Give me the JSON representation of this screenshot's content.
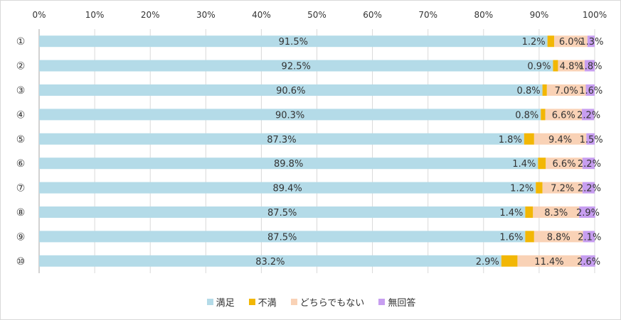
{
  "chart_data": {
    "type": "bar",
    "orientation": "horizontal",
    "stacked": "percent",
    "categories": [
      "①",
      "②",
      "③",
      "④",
      "⑤",
      "⑥",
      "⑦",
      "⑧",
      "⑨",
      "⑩"
    ],
    "x_ticks": [
      "0%",
      "10%",
      "20%",
      "30%",
      "40%",
      "50%",
      "60%",
      "70%",
      "80%",
      "90%",
      "100%"
    ],
    "xlim": [
      0,
      100
    ],
    "grid": true,
    "legend_position": "bottom",
    "series": [
      {
        "name": "満足",
        "color": "#b4dbe8",
        "values": [
          91.5,
          92.5,
          90.6,
          90.3,
          87.3,
          89.8,
          89.4,
          87.5,
          87.5,
          83.2
        ],
        "labels": [
          "91.5%",
          "92.5%",
          "90.6%",
          "90.3%",
          "87.3%",
          "89.8%",
          "89.4%",
          "87.5%",
          "87.5%",
          "83.2%"
        ]
      },
      {
        "name": "不満",
        "color": "#f2b705",
        "values": [
          1.2,
          0.9,
          0.8,
          0.8,
          1.8,
          1.4,
          1.2,
          1.4,
          1.6,
          2.9
        ],
        "labels": [
          "1.2%",
          "0.9%",
          "0.8%",
          "0.8%",
          "1.8%",
          "1.4%",
          "1.2%",
          "1.4%",
          "1.6%",
          "2.9%"
        ]
      },
      {
        "name": "どちらでもない",
        "color": "#f9d2b6",
        "values": [
          6.0,
          4.8,
          7.0,
          6.6,
          9.4,
          6.6,
          7.2,
          8.3,
          8.8,
          11.4
        ],
        "labels": [
          "6.0%",
          "4.8%",
          "7.0%",
          "6.6%",
          "9.4%",
          "6.6%",
          "7.2%",
          "8.3%",
          "8.8%",
          "11.4%"
        ]
      },
      {
        "name": "無回答",
        "color": "#c79ef0",
        "values": [
          1.3,
          1.8,
          1.6,
          2.2,
          1.5,
          2.2,
          2.2,
          2.9,
          2.1,
          2.6
        ],
        "labels": [
          "1.3%",
          "1.8%",
          "1.6%",
          "2.2%",
          "1.5%",
          "2.2%",
          "2.2%",
          "2.9%",
          "2.1%",
          "2.6%"
        ]
      }
    ]
  }
}
